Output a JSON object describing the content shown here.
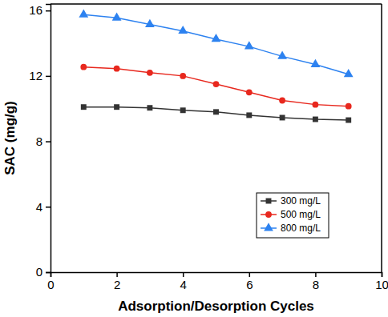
{
  "chart_data": {
    "type": "line",
    "x_label": "Adsorption/Desorption Cycles",
    "y_label": "SAC (mg/g)",
    "x": [
      1,
      2,
      3,
      4,
      5,
      6,
      7,
      8,
      9
    ],
    "series": [
      {
        "name": "300 mg/L",
        "color": "#333333",
        "marker": "square",
        "line_style": "solid",
        "values": [
          10.1,
          10.1,
          10.05,
          9.9,
          9.8,
          9.6,
          9.45,
          9.35,
          9.3
        ]
      },
      {
        "name": "500 mg/L",
        "color": "#e8281e",
        "marker": "circle",
        "line_style": "solid",
        "values": [
          12.55,
          12.45,
          12.2,
          12.0,
          11.5,
          11.0,
          10.5,
          10.25,
          10.15
        ]
      },
      {
        "name": "800 mg/L",
        "color": "#2d82f0",
        "marker": "triangle",
        "line_style": "solid",
        "values": [
          15.75,
          15.55,
          15.15,
          14.75,
          14.25,
          13.8,
          13.2,
          12.7,
          12.1
        ]
      }
    ],
    "xlim": [
      0,
      10
    ],
    "xticks": [
      0,
      2,
      4,
      6,
      8,
      10
    ],
    "ylim": [
      0,
      16.4
    ],
    "yticks": [
      0,
      4,
      8,
      12,
      16
    ],
    "legend": "lower right",
    "grid": false
  }
}
